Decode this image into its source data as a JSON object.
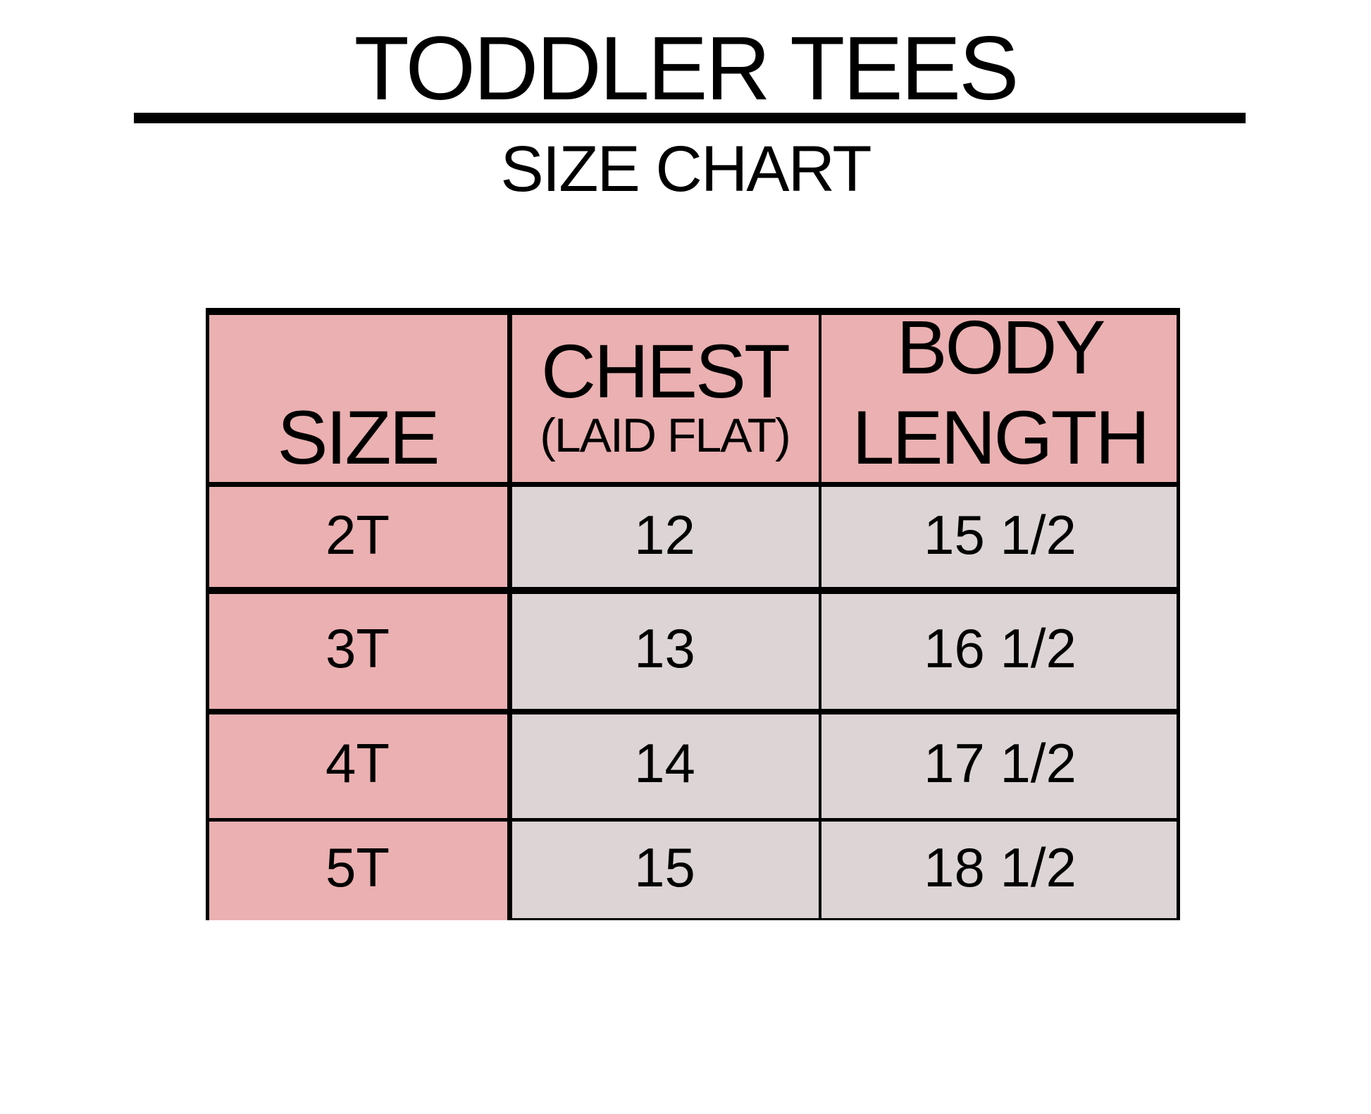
{
  "title": "TODDLER TEES",
  "subtitle": "SIZE CHART",
  "colors": {
    "header": "#ebb0b1",
    "size_column": "#ebb0b1",
    "body_cells": "#dcd4d5"
  },
  "table": {
    "headers": [
      {
        "main": "SIZE"
      },
      {
        "main": "CHEST",
        "sub": "(LAID FLAT)"
      },
      {
        "line1": "BODY",
        "line2": "LENGTH"
      }
    ],
    "rows": [
      {
        "size": "2T",
        "chest": "12",
        "body_length": "15 1/2"
      },
      {
        "size": "3T",
        "chest": "13",
        "body_length": "16 1/2"
      },
      {
        "size": "4T",
        "chest": "14",
        "body_length": "17 1/2"
      },
      {
        "size": "5T",
        "chest": "15",
        "body_length": "18 1/2"
      }
    ]
  }
}
